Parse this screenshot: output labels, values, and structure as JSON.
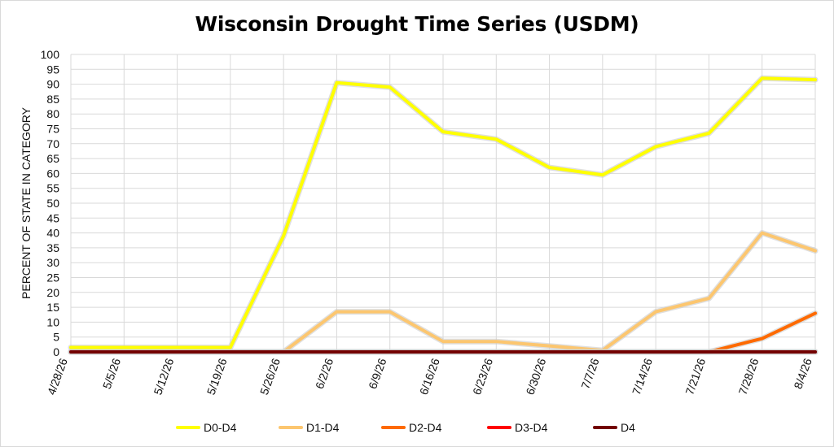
{
  "chart_data": {
    "type": "line",
    "title": "Wisconsin Drought Time Series (USDM)",
    "ylabel": "PERCENT OF STATE IN CATEGORY",
    "xlabel": "",
    "ylim": [
      0,
      100
    ],
    "ytick_step": 5,
    "grid": true,
    "legend_position": "bottom",
    "categories": [
      "4/28/26",
      "5/5/26",
      "5/12/26",
      "5/19/26",
      "5/26/26",
      "6/2/26",
      "6/9/26",
      "6/16/26",
      "6/23/26",
      "6/30/26",
      "7/7/26",
      "7/14/26",
      "7/21/26",
      "7/28/26",
      "8/4/26"
    ],
    "series": [
      {
        "name": "D0-D4",
        "color": "#ffff00",
        "values": [
          1.5,
          1.5,
          1.5,
          1.5,
          39,
          90.5,
          89,
          74,
          71.5,
          62,
          59.5,
          69,
          73.5,
          92,
          91.5
        ]
      },
      {
        "name": "D1-D4",
        "color": "#fcc66f",
        "values": [
          0,
          0,
          0,
          0,
          0,
          13.5,
          13.5,
          3.5,
          3.5,
          2,
          0.5,
          13.5,
          18,
          40,
          34
        ]
      },
      {
        "name": "D2-D4",
        "color": "#fe6a00",
        "values": [
          0,
          0,
          0,
          0,
          0,
          0,
          0,
          0,
          0,
          0,
          0,
          0,
          0,
          4.5,
          13
        ]
      },
      {
        "name": "D3-D4",
        "color": "#ff0000",
        "values": [
          0,
          0,
          0,
          0,
          0,
          0,
          0,
          0,
          0,
          0,
          0,
          0,
          0,
          0,
          0
        ]
      },
      {
        "name": "D4",
        "color": "#730000",
        "values": [
          0,
          0,
          0,
          0,
          0,
          0,
          0,
          0,
          0,
          0,
          0,
          0,
          0,
          0,
          0
        ]
      }
    ]
  }
}
